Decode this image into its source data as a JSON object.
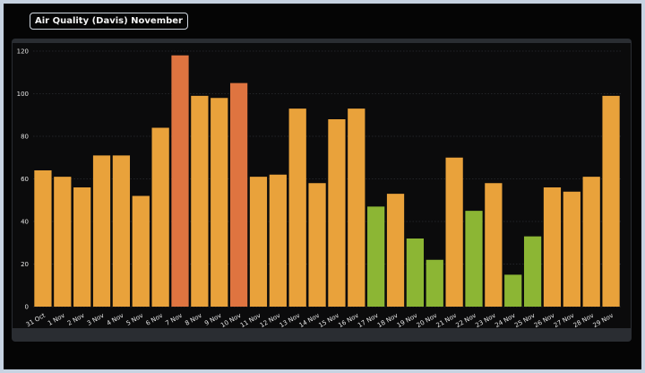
{
  "title": "Air Quality (Davis) November",
  "colors": {
    "moderate": "#e9a23b",
    "good": "#8cb634",
    "unhealthy_sensitive": "#df7440",
    "grid": "#3a3d42",
    "axis_text": "#e6e6e6"
  },
  "chart_data": {
    "type": "bar",
    "title": "Air Quality (Davis) November",
    "xlabel": "",
    "ylabel": "",
    "ylim": [
      0,
      120
    ],
    "yticks": [
      0,
      20,
      40,
      60,
      80,
      100,
      120
    ],
    "grid": true,
    "categories": [
      "31 Oct",
      "1 Nov",
      "2 Nov",
      "3 Nov",
      "4 Nov",
      "5 Nov",
      "6 Nov",
      "7 Nov",
      "8 Nov",
      "9 Nov",
      "10 Nov",
      "11 Nov",
      "12 Nov",
      "13 Nov",
      "14 Nov",
      "15 Nov",
      "16 Nov",
      "17 Nov",
      "18 Nov",
      "19 Nov",
      "20 Nov",
      "21 Nov",
      "22 Nov",
      "23 Nov",
      "24 Nov",
      "25 Nov",
      "26 Nov",
      "27 Nov",
      "28 Nov",
      "29 Nov"
    ],
    "values": [
      64,
      61,
      56,
      71,
      71,
      52,
      84,
      118,
      99,
      98,
      105,
      61,
      62,
      93,
      58,
      88,
      93,
      47,
      53,
      32,
      22,
      70,
      45,
      58,
      15,
      33,
      56,
      54,
      61,
      99
    ],
    "bar_colors": [
      "moderate",
      "moderate",
      "moderate",
      "moderate",
      "moderate",
      "moderate",
      "moderate",
      "unhealthy_sensitive",
      "moderate",
      "moderate",
      "unhealthy_sensitive",
      "moderate",
      "moderate",
      "moderate",
      "moderate",
      "moderate",
      "moderate",
      "good",
      "moderate",
      "good",
      "good",
      "moderate",
      "good",
      "moderate",
      "good",
      "good",
      "moderate",
      "moderate",
      "moderate",
      "moderate"
    ]
  }
}
